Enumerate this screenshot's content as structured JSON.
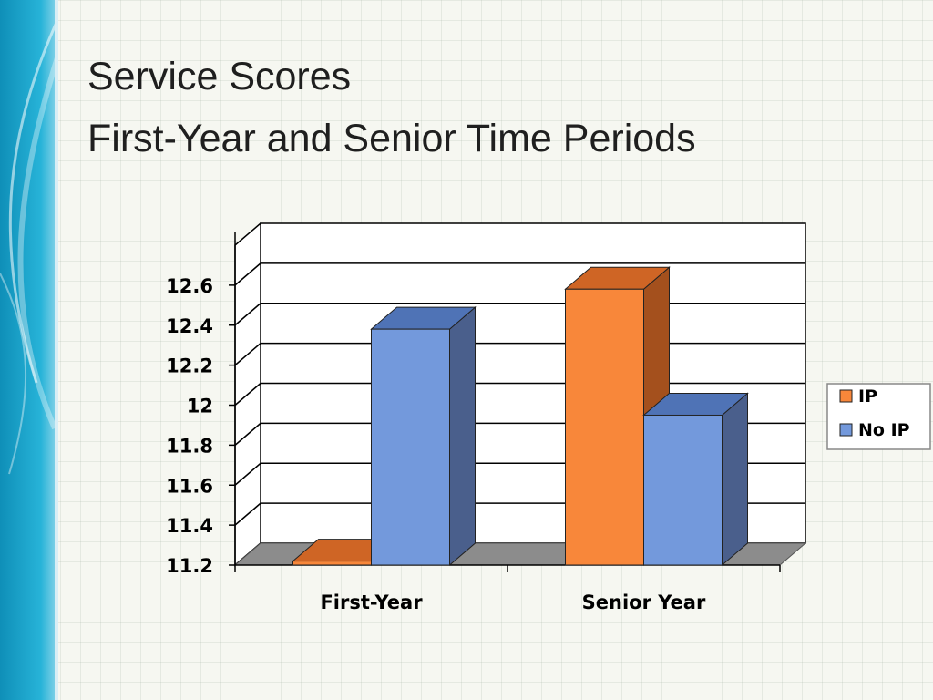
{
  "slide": {
    "title_line1": "Service Scores",
    "title_line2": "First-Year and Senior Time Periods"
  },
  "colors": {
    "accent_band": "#1aa7cc",
    "background": "#f6f7f1",
    "floor": "#8c8c8c",
    "gridline": "#000000"
  },
  "chart_data": {
    "type": "bar",
    "style": "3d-clustered",
    "title": "",
    "xlabel": "",
    "ylabel": "",
    "categories": [
      "First-Year",
      "Senior Year"
    ],
    "series": [
      {
        "name": "IP",
        "values": [
          11.22,
          12.58
        ],
        "color": "#f8873a",
        "top_color": "#cf6525",
        "side_color": "#a4501d"
      },
      {
        "name": "No IP",
        "values": [
          12.38,
          11.95
        ],
        "color": "#7399dc",
        "top_color": "#4f73b6",
        "side_color": "#4a5f8c"
      }
    ],
    "y_ticks": [
      "11.2",
      "11.4",
      "11.6",
      "11.8",
      "12",
      "12.2",
      "12.4",
      "12.6"
    ],
    "ylim": [
      11.2,
      12.8
    ],
    "grid": true,
    "legend_position": "right"
  }
}
